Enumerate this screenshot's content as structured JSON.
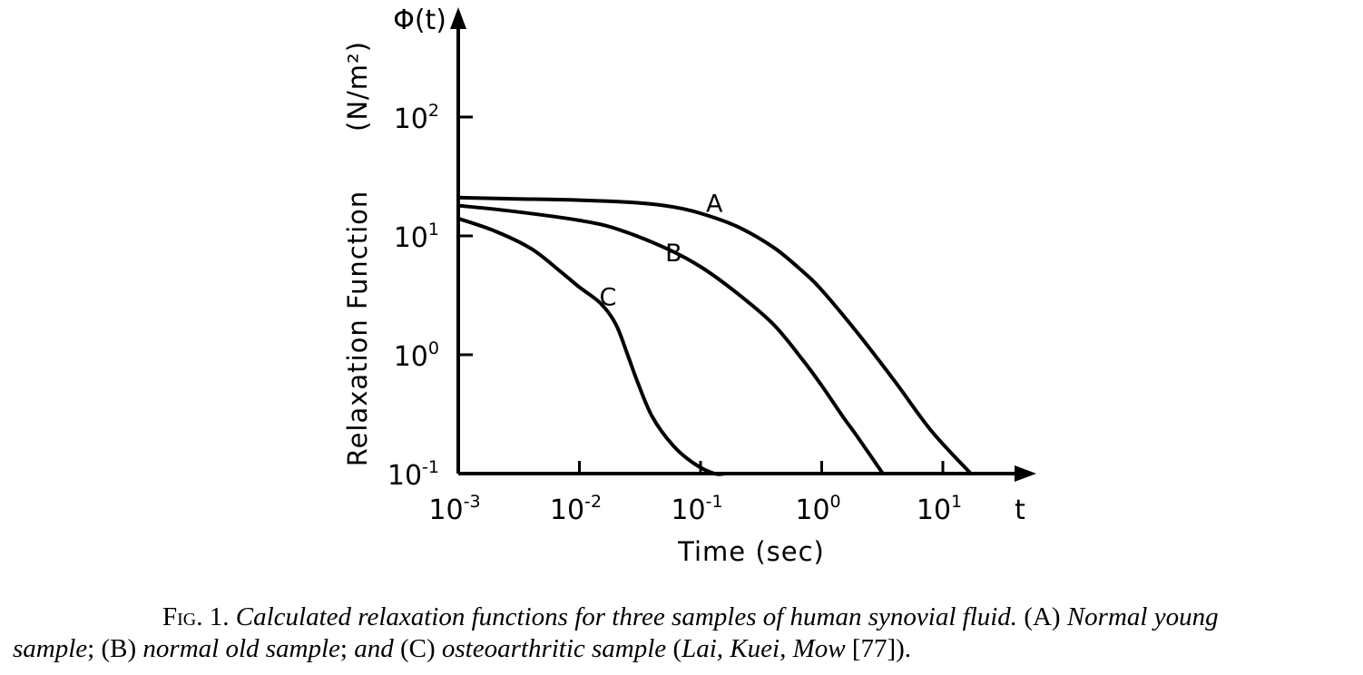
{
  "chart_data": {
    "type": "line",
    "xscale": "log",
    "yscale": "log",
    "xlim": [
      0.001,
      20
    ],
    "ylim": [
      0.1,
      400
    ],
    "x_ticks": [
      {
        "value": 0.001,
        "base": "10",
        "exp": "-3"
      },
      {
        "value": 0.01,
        "base": "10",
        "exp": "-2"
      },
      {
        "value": 0.1,
        "base": "10",
        "exp": "-1"
      },
      {
        "value": 1,
        "base": "10",
        "exp": "0"
      },
      {
        "value": 10,
        "base": "10",
        "exp": "1"
      }
    ],
    "y_ticks": [
      {
        "value": 0.1,
        "base": "10",
        "exp": "-1"
      },
      {
        "value": 1,
        "base": "10",
        "exp": "0"
      },
      {
        "value": 10,
        "base": "10",
        "exp": "1"
      },
      {
        "value": 100,
        "base": "10",
        "exp": "2"
      }
    ],
    "x_axis_symbol": "t",
    "y_axis_symbol": "Φ(t)",
    "ylabel": "Relaxation Function",
    "ylabel_unit": "(N/m²)",
    "xlabel": "Time (sec)",
    "grid": false,
    "series": [
      {
        "name": "A",
        "x": [
          0.001,
          0.003,
          0.01,
          0.03,
          0.06,
          0.1,
          0.2,
          0.4,
          0.7,
          1,
          2,
          4,
          8,
          17
        ],
        "y": [
          21,
          20.5,
          20,
          19,
          17.5,
          15.5,
          12,
          8,
          5,
          3.5,
          1.5,
          0.6,
          0.23,
          0.1
        ]
      },
      {
        "name": "B",
        "x": [
          0.001,
          0.003,
          0.01,
          0.02,
          0.05,
          0.1,
          0.2,
          0.4,
          0.7,
          1,
          1.5,
          2,
          3.2
        ],
        "y": [
          18,
          16,
          13.5,
          11.5,
          8,
          5.5,
          3.3,
          1.8,
          0.9,
          0.55,
          0.3,
          0.2,
          0.1
        ]
      },
      {
        "name": "C",
        "x": [
          0.001,
          0.002,
          0.004,
          0.007,
          0.01,
          0.015,
          0.02,
          0.025,
          0.03,
          0.04,
          0.06,
          0.09,
          0.13,
          0.16
        ],
        "y": [
          14,
          11,
          7.8,
          5,
          3.7,
          2.7,
          1.8,
          1,
          0.6,
          0.3,
          0.17,
          0.12,
          0.1,
          0.1
        ]
      }
    ],
    "curve_labels": [
      {
        "text": "A",
        "x": 0.13,
        "y": 16
      },
      {
        "text": "B",
        "x": 0.06,
        "y": 6.1
      },
      {
        "text": "C",
        "x": 0.0172,
        "y": 2.6
      }
    ]
  },
  "caption": {
    "fig_label": "Fig. 1.",
    "line1_italic": "Calculated relaxation functions for three samples of human synovial fluid.",
    "line1_a": "(A)",
    "line1_a_text": "Normal young",
    "line2_sample": "sample",
    "line2_semi1": ";",
    "line2_b": "(B)",
    "line2_b_text": "normal old sample",
    "line2_semi2": ";",
    "line2_and": "and",
    "line2_c": "(C)",
    "line2_c_text": "osteoarthritic sample",
    "line2_open": "(",
    "line2_authors": "Lai, Kuei, Mow",
    "line2_ref": "[77]).",
    "line2_space": " "
  }
}
